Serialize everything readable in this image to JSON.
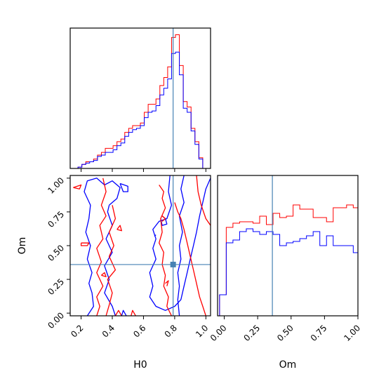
{
  "chart_data": {
    "type": "corner",
    "parameters": [
      "H0",
      "Om"
    ],
    "truth": {
      "H0": 0.79,
      "Om": 0.36
    },
    "truth_color": "#4682b4",
    "series": [
      {
        "color": "#ff0000"
      },
      {
        "color": "#0000ff"
      }
    ],
    "panels": [
      {
        "id": "hist-H0",
        "type": "histogram",
        "parameter": "H0",
        "xlim": [
          0.13,
          1.03
        ],
        "bins": [
          0.13,
          0.155,
          0.18,
          0.205,
          0.23,
          0.255,
          0.28,
          0.305,
          0.33,
          0.355,
          0.38,
          0.405,
          0.43,
          0.455,
          0.48,
          0.505,
          0.53,
          0.555,
          0.58,
          0.605,
          0.63,
          0.655,
          0.68,
          0.705,
          0.73,
          0.755,
          0.78,
          0.805,
          0.83,
          0.855,
          0.88,
          0.905,
          0.93,
          0.955,
          0.98,
          1.005
        ],
        "counts": [
          [
            0,
            0,
            0.01,
            0.03,
            0.05,
            0.05,
            0.07,
            0.1,
            0.12,
            0.15,
            0.15,
            0.17,
            0.2,
            0.22,
            0.27,
            0.3,
            0.32,
            0.32,
            0.34,
            0.42,
            0.48,
            0.48,
            0.52,
            0.62,
            0.68,
            0.76,
            0.98,
            1.0,
            0.77,
            0.5,
            0.46,
            0.3,
            0.2,
            0.08,
            0
          ],
          [
            0,
            0,
            0.01,
            0.03,
            0.04,
            0.05,
            0.06,
            0.09,
            0.1,
            0.12,
            0.12,
            0.14,
            0.17,
            0.19,
            0.24,
            0.27,
            0.29,
            0.3,
            0.32,
            0.38,
            0.42,
            0.43,
            0.47,
            0.55,
            0.6,
            0.67,
            0.86,
            0.87,
            0.7,
            0.45,
            0.42,
            0.28,
            0.18,
            0.07,
            0
          ]
        ],
        "ymax": 1.05
      },
      {
        "id": "hist-Om",
        "type": "histogram",
        "parameter": "Om",
        "xlim": [
          -0.05,
          1.0
        ],
        "bins": [
          -0.035,
          0.015,
          0.065,
          0.115,
          0.165,
          0.215,
          0.265,
          0.315,
          0.365,
          0.415,
          0.465,
          0.515,
          0.565,
          0.615,
          0.665,
          0.715,
          0.765,
          0.815,
          0.865,
          0.915,
          0.965,
          1.015
        ],
        "counts": [
          [
            0.15,
            0.63,
            0.66,
            0.67,
            0.67,
            0.66,
            0.71,
            0.65,
            0.73,
            0.7,
            0.71,
            0.79,
            0.76,
            0.76,
            0.7,
            0.7,
            0.67,
            0.77,
            0.77,
            0.79,
            0.77
          ],
          [
            0.15,
            0.52,
            0.54,
            0.6,
            0.62,
            0.6,
            0.58,
            0.6,
            0.58,
            0.5,
            0.52,
            0.53,
            0.55,
            0.57,
            0.6,
            0.5,
            0.57,
            0.5,
            0.5,
            0.5,
            0.45
          ]
        ],
        "ymax": 1.0
      },
      {
        "id": "contour-H0-Om",
        "type": "contour",
        "x_parameter": "H0",
        "y_parameter": "Om",
        "xlim": [
          0.13,
          1.03
        ],
        "ylim": [
          -0.02,
          1.02
        ]
      }
    ],
    "x_ticks_H0": [
      "0.2",
      "0.4",
      "0.6",
      "0.8",
      "1.0"
    ],
    "x_ticks_Om": [
      "0.00",
      "0.25",
      "0.50",
      "0.75",
      "1.00"
    ],
    "y_ticks_Om": [
      "0.00",
      "0.25",
      "0.50",
      "0.75",
      "1.00"
    ],
    "xlabel_H0": "H0",
    "xlabel_Om": "Om",
    "ylabel_Om": "Om"
  }
}
